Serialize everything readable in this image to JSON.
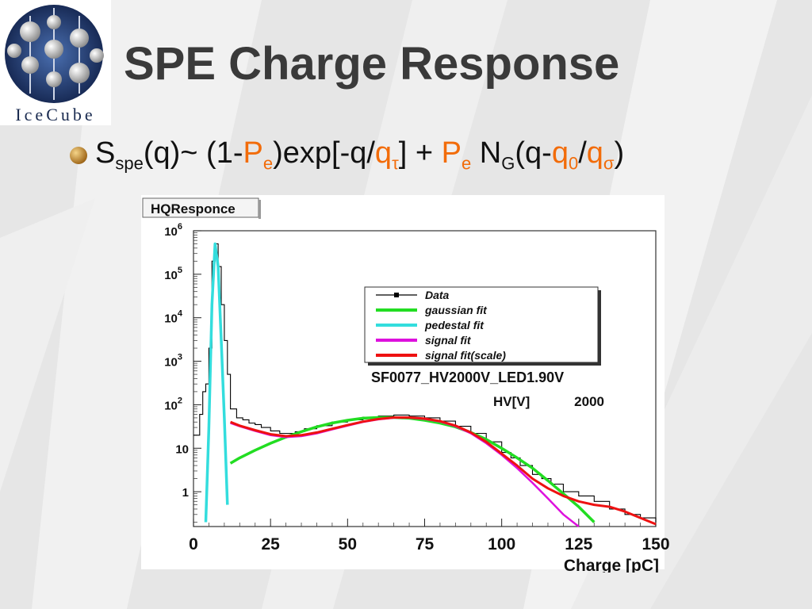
{
  "slide": {
    "title": "SPE Charge Response",
    "logo_text": "IceCube",
    "formula": {
      "parts": [
        "S",
        "spe",
        "(q)~ (1-",
        "P",
        "e",
        ")exp[-q/",
        "q",
        "τ",
        "] + ",
        "P",
        "e",
        " N",
        "G",
        "(q-",
        "q",
        "0",
        "/",
        "q",
        "σ",
        ")"
      ]
    },
    "colors": {
      "highlight": "#f26c0a",
      "title": "#3a3a3a"
    }
  },
  "chart_data": {
    "type": "line",
    "title": "HQResponce",
    "xlabel": "Charge [pC]",
    "ylabel": "",
    "xlim": [
      0,
      150
    ],
    "ylim_log10": [
      -0.8,
      6
    ],
    "y_scale": "log",
    "x_ticks": [
      0,
      25,
      50,
      75,
      100,
      125,
      150
    ],
    "y_ticks": [
      {
        "label": "10",
        "sup": "6",
        "value": 1000000
      },
      {
        "label": "10",
        "sup": "5",
        "value": 100000
      },
      {
        "label": "10",
        "sup": "4",
        "value": 10000
      },
      {
        "label": "10",
        "sup": "3",
        "value": 1000
      },
      {
        "label": "10",
        "sup": "2",
        "value": 100
      },
      {
        "label": "10",
        "sup": "",
        "value": 10
      },
      {
        "label": "1",
        "sup": "",
        "value": 1
      }
    ],
    "legend_placement": "top-right",
    "annotations": [
      "SF0077_HV2000V_LED1.90V",
      "HV[V]",
      "2000"
    ],
    "series": [
      {
        "name": "Data",
        "color": "#000000",
        "x": [
          0,
          2,
          3,
          4,
          5,
          6,
          7,
          8,
          9,
          10,
          11,
          12,
          14,
          16,
          18,
          20,
          22,
          25,
          28,
          30,
          33,
          36,
          40,
          45,
          50,
          55,
          60,
          65,
          70,
          75,
          80,
          85,
          90,
          95,
          100,
          103,
          106,
          110,
          113,
          116,
          120,
          125,
          130,
          135,
          140,
          145,
          150
        ],
        "y": [
          20,
          60,
          200,
          300,
          2000,
          200000,
          500000,
          150000,
          20000,
          3000,
          500,
          80,
          50,
          45,
          38,
          35,
          30,
          25,
          22,
          22,
          24,
          28,
          33,
          40,
          45,
          52,
          55,
          58,
          55,
          50,
          42,
          32,
          22,
          14,
          8,
          6,
          4,
          2.5,
          2,
          1.5,
          1,
          0.8,
          0.6,
          0.4,
          0.3,
          0.25,
          0.2
        ]
      },
      {
        "name": "gaussian  fit",
        "color": "#22dd22",
        "x": [
          12,
          15,
          20,
          25,
          30,
          35,
          40,
          45,
          50,
          55,
          60,
          65,
          70,
          75,
          80,
          85,
          90,
          95,
          100,
          105,
          110,
          115,
          120,
          125,
          130
        ],
        "y": [
          4.5,
          6,
          9,
          13,
          18,
          24,
          31,
          38,
          44,
          49,
          51,
          51,
          49,
          44,
          38,
          31,
          23,
          16,
          10,
          6,
          3.5,
          1.8,
          0.9,
          0.45,
          0.2
        ]
      },
      {
        "name": "pedestal  fit",
        "color": "#33dddd",
        "x": [
          4,
          5,
          6,
          7,
          8,
          9,
          10,
          11
        ],
        "y": [
          0.2,
          30,
          20000,
          500000,
          150000,
          3000,
          50,
          0.5
        ]
      },
      {
        "name": "signal  fit",
        "color": "#dd11dd",
        "x": [
          12,
          15,
          20,
          25,
          30,
          35,
          40,
          45,
          50,
          55,
          60,
          65,
          70,
          75,
          80,
          85,
          90,
          95,
          100,
          105,
          110,
          115,
          120,
          125
        ],
        "y": [
          38,
          32,
          25,
          20,
          18,
          19,
          22,
          27,
          33,
          40,
          46,
          50,
          50,
          47,
          41,
          32,
          22,
          13,
          7,
          3.5,
          1.6,
          0.7,
          0.3,
          0.15
        ]
      },
      {
        "name": "signal  fit(scale)",
        "color": "#ee1111",
        "x": [
          12,
          15,
          20,
          25,
          30,
          35,
          40,
          45,
          50,
          55,
          60,
          65,
          70,
          75,
          80,
          85,
          90,
          95,
          100,
          105,
          110,
          115,
          120,
          125,
          130,
          135,
          140,
          145,
          150
        ],
        "y": [
          40,
          33,
          26,
          21,
          19,
          20,
          23,
          28,
          34,
          41,
          47,
          51,
          51,
          48,
          42,
          33,
          23,
          14,
          7.5,
          4,
          2,
          1.2,
          0.8,
          0.6,
          0.5,
          0.45,
          0.35,
          0.25,
          0.18
        ]
      }
    ]
  }
}
